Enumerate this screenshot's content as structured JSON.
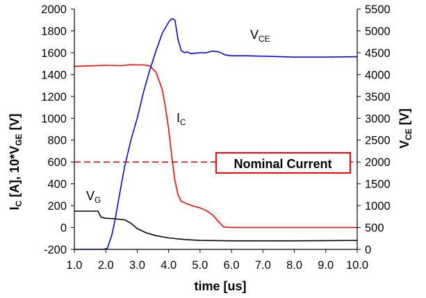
{
  "chart_data": {
    "type": "line",
    "x": {
      "label": "time [us]",
      "ticks": [
        "1.0",
        "2.0",
        "3.0",
        "4.0",
        "5.0",
        "6.0",
        "7.0",
        "8.0",
        "9.0",
        "10.0"
      ],
      "range": [
        1.0,
        10.0
      ]
    },
    "y_left": {
      "label": "I",
      "label_sub": "C",
      "label_rest": " [A], 10*V",
      "label_sub2": "GE",
      "label_end": " [V]",
      "ticks": [
        "-200",
        "0",
        "200",
        "400",
        "600",
        "800",
        "1000",
        "1200",
        "1400",
        "1600",
        "1800",
        "2000"
      ],
      "range": [
        -200,
        2000
      ]
    },
    "y_right": {
      "label": "V",
      "label_sub": "CE",
      "label_end": " [V]",
      "ticks": [
        "0",
        "500",
        "1000",
        "1500",
        "2000",
        "2500",
        "3000",
        "3500",
        "4000",
        "4500",
        "5000",
        "5500"
      ],
      "range": [
        0,
        5500
      ]
    },
    "series": [
      {
        "name": "Ic",
        "axis": "left",
        "color": "#ff0000",
        "points": [
          [
            1.0,
            1475
          ],
          [
            1.5,
            1480
          ],
          [
            2.0,
            1485
          ],
          [
            2.5,
            1482
          ],
          [
            2.8,
            1490
          ],
          [
            3.0,
            1488
          ],
          [
            3.2,
            1488
          ],
          [
            3.4,
            1480
          ],
          [
            3.6,
            1420
          ],
          [
            3.8,
            1260
          ],
          [
            3.9,
            1100
          ],
          [
            4.0,
            900
          ],
          [
            4.1,
            650
          ],
          [
            4.2,
            430
          ],
          [
            4.3,
            300
          ],
          [
            4.4,
            240
          ],
          [
            4.6,
            215
          ],
          [
            4.8,
            195
          ],
          [
            5.0,
            180
          ],
          [
            5.2,
            155
          ],
          [
            5.4,
            115
          ],
          [
            5.6,
            50
          ],
          [
            5.75,
            5
          ],
          [
            6.0,
            0
          ],
          [
            7.0,
            0
          ],
          [
            8.0,
            0
          ],
          [
            9.0,
            0
          ],
          [
            10.0,
            0
          ]
        ]
      },
      {
        "name": "VCE",
        "axis": "right",
        "color": "#0000ff",
        "points": [
          [
            1.0,
            0
          ],
          [
            1.9,
            0
          ],
          [
            2.05,
            20
          ],
          [
            2.2,
            350
          ],
          [
            2.3,
            700
          ],
          [
            2.4,
            1100
          ],
          [
            2.5,
            1500
          ],
          [
            2.6,
            1900
          ],
          [
            2.8,
            2500
          ],
          [
            3.0,
            3000
          ],
          [
            3.2,
            3600
          ],
          [
            3.4,
            4100
          ],
          [
            3.6,
            4550
          ],
          [
            3.8,
            4950
          ],
          [
            4.0,
            5200
          ],
          [
            4.1,
            5280
          ],
          [
            4.2,
            5250
          ],
          [
            4.3,
            4800
          ],
          [
            4.4,
            4550
          ],
          [
            4.5,
            4500
          ],
          [
            4.6,
            4520
          ],
          [
            4.7,
            4480
          ],
          [
            5.0,
            4500
          ],
          [
            5.2,
            4500
          ],
          [
            5.4,
            4540
          ],
          [
            5.6,
            4520
          ],
          [
            5.8,
            4450
          ],
          [
            6.0,
            4430
          ],
          [
            6.5,
            4430
          ],
          [
            7.0,
            4420
          ],
          [
            8.0,
            4400
          ],
          [
            9.0,
            4400
          ],
          [
            10.0,
            4410
          ]
        ]
      },
      {
        "name": "VG",
        "axis": "left",
        "color": "#000000",
        "points": [
          [
            1.0,
            150
          ],
          [
            1.75,
            150
          ],
          [
            1.85,
            95
          ],
          [
            2.0,
            85
          ],
          [
            2.3,
            80
          ],
          [
            2.6,
            70
          ],
          [
            2.8,
            40
          ],
          [
            3.0,
            -10
          ],
          [
            3.3,
            -50
          ],
          [
            3.6,
            -75
          ],
          [
            4.0,
            -95
          ],
          [
            4.5,
            -110
          ],
          [
            5.0,
            -118
          ],
          [
            6.0,
            -122
          ],
          [
            7.0,
            -122
          ],
          [
            8.0,
            -122
          ],
          [
            9.0,
            -120
          ],
          [
            10.0,
            -118
          ]
        ]
      },
      {
        "name": "Nominal Current",
        "axis": "left",
        "color": "#cc0000",
        "dashed": true,
        "points": [
          [
            1.0,
            600
          ],
          [
            10.0,
            600
          ]
        ]
      }
    ],
    "annotations": {
      "vce": {
        "main": "V",
        "sub": "CE"
      },
      "ic": {
        "main": "I",
        "sub": "C"
      },
      "vg": {
        "main": "V",
        "sub": "G"
      },
      "nominal": "Nominal Current"
    },
    "grid": false
  }
}
